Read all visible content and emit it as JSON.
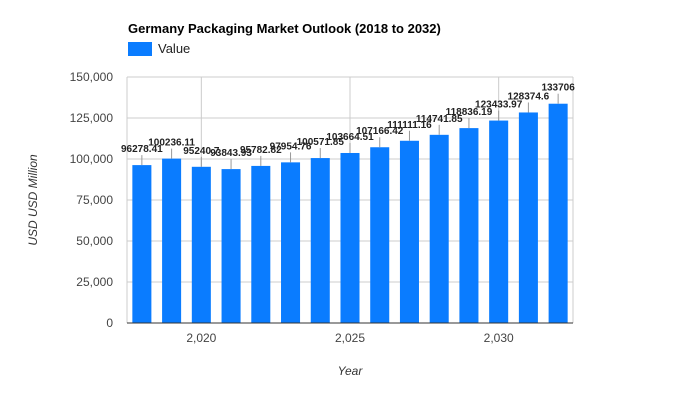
{
  "chart_data": {
    "type": "bar",
    "title": "Germany Packaging Market Outlook (2018 to 2032)",
    "legend": {
      "label": "Value",
      "position": "top-left"
    },
    "xlabel": "Year",
    "ylabel": "USD USD Million",
    "x": [
      2018,
      2019,
      2020,
      2021,
      2022,
      2023,
      2024,
      2025,
      2026,
      2027,
      2028,
      2029,
      2030,
      2031,
      2032
    ],
    "values": [
      96278.41,
      100236.11,
      95240.7,
      93843.93,
      95782.82,
      97954.76,
      100571.85,
      103664.51,
      107166.42,
      111111.16,
      114741.85,
      118836.19,
      123433.97,
      128374.6,
      133706
    ],
    "value_labels": [
      "96278.41",
      "100236.11",
      "95240.7",
      "93843.93",
      "95782.82",
      "97954.76",
      "100571.85",
      "103664.51",
      "107166.42",
      "111111.16",
      "114741.85",
      "118836.19",
      "123433.97",
      "128374.6",
      "133706"
    ],
    "ylim": [
      0,
      150000
    ],
    "y_ticks": [
      0,
      25000,
      50000,
      75000,
      100000,
      125000,
      150000
    ],
    "y_tick_labels": [
      "0",
      "25,000",
      "50,000",
      "75,000",
      "100,000",
      "125,000",
      "150,000"
    ],
    "x_ticks": [
      2020,
      2025,
      2030
    ],
    "x_tick_labels": [
      "2,020",
      "2,025",
      "2,030"
    ],
    "grid": true,
    "colors": {
      "bar": "#0a7cff"
    }
  }
}
